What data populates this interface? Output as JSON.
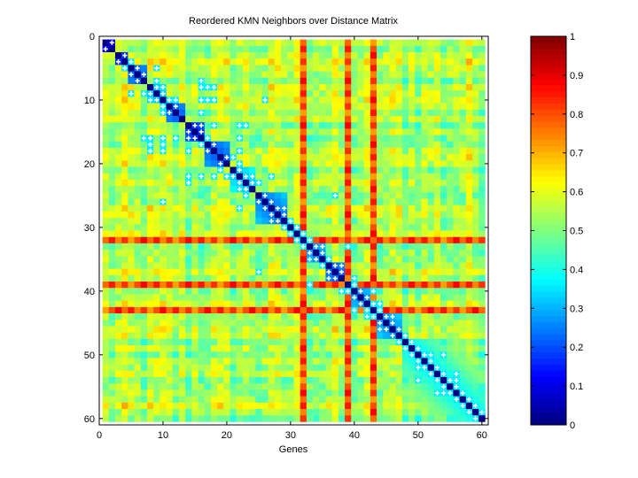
{
  "chart_data": {
    "type": "heatmap",
    "title": "Reordered KMN Neighbors over Distance Matrix",
    "xlabel": "Genes",
    "ylabel": "",
    "xlim": [
      0,
      61
    ],
    "ylim": [
      0,
      61
    ],
    "x_ticks": [
      "0",
      "10",
      "20",
      "30",
      "40",
      "50",
      "60"
    ],
    "y_ticks": [
      "0",
      "10",
      "20",
      "30",
      "40",
      "50",
      "60"
    ],
    "colormap": "jet",
    "clim": [
      0,
      1
    ],
    "colorbar_ticks": [
      "0",
      "0.1",
      "0.2",
      "0.3",
      "0.4",
      "0.5",
      "0.6",
      "0.7",
      "0.8",
      "0.9",
      "1"
    ],
    "n_genes": 60,
    "marker_color": "#ffffff",
    "clusters": [
      {
        "genes": [
          1,
          2
        ],
        "value": 0.0
      },
      {
        "genes": [
          3,
          4
        ],
        "value": 0.05
      },
      {
        "genes": [
          5,
          6,
          7
        ],
        "value": 0.1
      },
      {
        "genes": [
          8,
          9,
          10
        ],
        "value": 0.2
      },
      {
        "genes": [
          11,
          12,
          13
        ],
        "value": 0.1
      },
      {
        "genes": [
          14,
          15,
          16
        ],
        "value": 0.05
      },
      {
        "genes": [
          17,
          18,
          19,
          20
        ],
        "value": 0.1
      },
      {
        "genes": [
          21,
          22,
          23,
          24
        ],
        "value": 0.2
      },
      {
        "genes": [
          25,
          26,
          27,
          28,
          29
        ],
        "value": 0.12
      },
      {
        "genes": [
          33,
          34,
          35
        ],
        "value": 0.15
      },
      {
        "genes": [
          36,
          37,
          38
        ],
        "value": 0.1
      },
      {
        "genes": [
          40,
          41,
          42
        ],
        "value": 0.15
      },
      {
        "genes": [
          44,
          45,
          46,
          47
        ],
        "value": 0.15
      },
      {
        "genes": [
          48,
          49,
          50,
          51,
          52,
          53,
          54,
          55,
          56,
          57,
          58,
          59,
          60
        ],
        "value": 0.25
      }
    ],
    "high_distance_genes": [
      32,
      39,
      43
    ],
    "neighbor_pairs": [
      [
        1,
        2
      ],
      [
        3,
        4
      ],
      [
        4,
        5
      ],
      [
        5,
        6
      ],
      [
        5,
        9
      ],
      [
        6,
        7
      ],
      [
        7,
        9
      ],
      [
        7,
        16
      ],
      [
        8,
        9
      ],
      [
        8,
        10
      ],
      [
        8,
        16
      ],
      [
        8,
        17
      ],
      [
        8,
        18
      ],
      [
        9,
        10
      ],
      [
        10,
        11
      ],
      [
        10,
        12
      ],
      [
        10,
        16
      ],
      [
        10,
        17
      ],
      [
        10,
        18
      ],
      [
        10,
        26
      ],
      [
        11,
        12
      ],
      [
        12,
        16
      ],
      [
        14,
        15
      ],
      [
        14,
        16
      ],
      [
        14,
        18
      ],
      [
        14,
        22
      ],
      [
        14,
        23
      ],
      [
        15,
        16
      ],
      [
        16,
        17
      ],
      [
        16,
        22
      ],
      [
        17,
        18
      ],
      [
        18,
        22
      ],
      [
        19,
        20
      ],
      [
        19,
        21
      ],
      [
        20,
        22
      ],
      [
        21,
        22
      ],
      [
        22,
        23
      ],
      [
        22,
        24
      ],
      [
        22,
        27
      ],
      [
        23,
        24
      ],
      [
        23,
        25
      ],
      [
        25,
        26
      ],
      [
        25,
        37
      ],
      [
        26,
        27
      ],
      [
        27,
        28
      ],
      [
        27,
        29
      ],
      [
        28,
        29
      ],
      [
        29,
        30
      ],
      [
        30,
        31
      ],
      [
        31,
        32
      ],
      [
        32,
        33
      ],
      [
        33,
        34
      ],
      [
        33,
        35
      ],
      [
        33,
        39
      ],
      [
        34,
        35
      ],
      [
        35,
        36
      ],
      [
        36,
        37
      ],
      [
        36,
        38
      ],
      [
        37,
        38
      ],
      [
        38,
        40
      ],
      [
        39,
        40
      ],
      [
        40,
        41
      ],
      [
        40,
        43
      ],
      [
        41,
        42
      ],
      [
        42,
        43
      ],
      [
        42,
        44
      ],
      [
        43,
        44
      ],
      [
        44,
        45
      ],
      [
        44,
        46
      ],
      [
        45,
        46
      ],
      [
        46,
        47
      ],
      [
        47,
        48
      ],
      [
        48,
        49
      ],
      [
        49,
        50
      ],
      [
        50,
        51
      ],
      [
        50,
        52
      ],
      [
        50,
        54
      ],
      [
        51,
        52
      ],
      [
        52,
        53
      ],
      [
        53,
        54
      ],
      [
        53,
        56
      ],
      [
        54,
        55
      ],
      [
        54,
        56
      ],
      [
        55,
        56
      ],
      [
        56,
        57
      ],
      [
        57,
        58
      ],
      [
        58,
        59
      ],
      [
        59,
        60
      ]
    ]
  }
}
